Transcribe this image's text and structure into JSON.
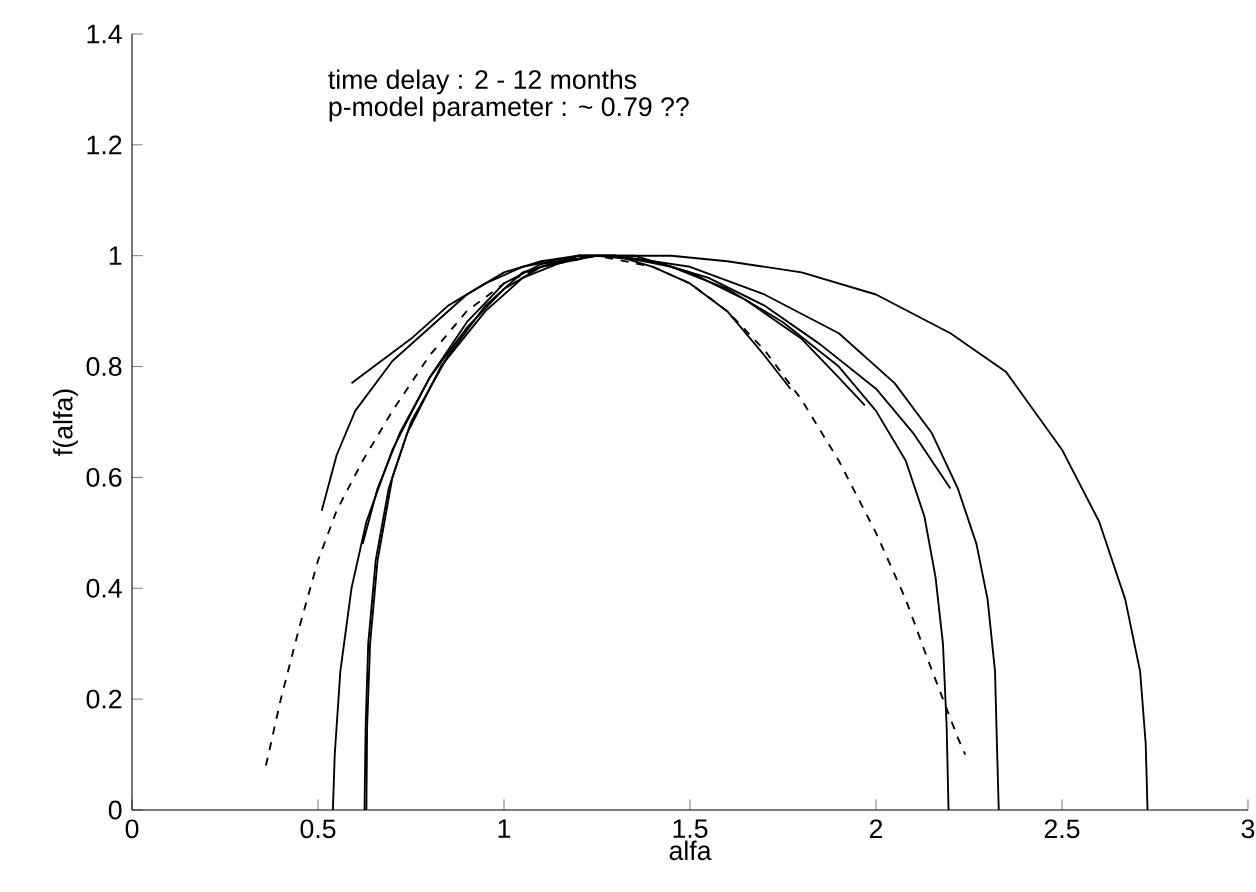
{
  "chart_data": {
    "type": "line",
    "xlabel": "alfa",
    "ylabel": "f(alfa)",
    "annotations": [
      "time delay : 2 - 12 months",
      "p-model parameter : ~ 0.79 ??"
    ],
    "xlim": [
      0,
      3
    ],
    "ylim": [
      0,
      1.4
    ],
    "xticks": [
      0,
      0.5,
      1,
      1.5,
      2,
      2.5,
      3
    ],
    "yticks": [
      0,
      0.2,
      0.4,
      0.6,
      0.8,
      1,
      1.2,
      1.4
    ],
    "grid": false,
    "marker": "none",
    "line_style": "solid",
    "series": [
      {
        "color": "#000000",
        "x": [
          0.54,
          0.545,
          0.56,
          0.59,
          0.63,
          0.7,
          0.8,
          0.9,
          1.0,
          1.1,
          1.25,
          1.45,
          1.6,
          1.8,
          2.0,
          2.2,
          2.35,
          2.5,
          2.6,
          2.67,
          2.71,
          2.725,
          2.73
        ],
        "values": [
          0,
          0.1,
          0.25,
          0.4,
          0.52,
          0.65,
          0.78,
          0.88,
          0.95,
          0.985,
          1.0,
          1.0,
          0.99,
          0.97,
          0.93,
          0.86,
          0.79,
          0.65,
          0.52,
          0.38,
          0.25,
          0.12,
          0
        ]
      },
      {
        "color": "#000000",
        "x": [
          0.63,
          0.632,
          0.64,
          0.66,
          0.7,
          0.75,
          0.85,
          0.95,
          1.05,
          1.2,
          1.3,
          1.5,
          1.7,
          1.9,
          2.05,
          2.15,
          2.22,
          2.27,
          2.3,
          2.32,
          2.325,
          2.33
        ],
        "values": [
          0,
          0.15,
          0.3,
          0.45,
          0.6,
          0.7,
          0.82,
          0.91,
          0.97,
          1.0,
          1.0,
          0.98,
          0.93,
          0.86,
          0.77,
          0.68,
          0.58,
          0.48,
          0.38,
          0.25,
          0.12,
          0
        ]
      },
      {
        "color": "#000000",
        "x": [
          0.625,
          0.628,
          0.635,
          0.655,
          0.69,
          0.74,
          0.83,
          0.95,
          1.05,
          1.2,
          1.3,
          1.45,
          1.6,
          1.75,
          1.9,
          2.0,
          2.08,
          2.13,
          2.16,
          2.18,
          2.19,
          2.195
        ],
        "values": [
          0,
          0.15,
          0.3,
          0.45,
          0.58,
          0.68,
          0.8,
          0.9,
          0.96,
          1.0,
          1.0,
          0.98,
          0.94,
          0.88,
          0.8,
          0.72,
          0.63,
          0.53,
          0.42,
          0.3,
          0.15,
          0
        ]
      },
      {
        "color": "#000000",
        "line_style": "dashed",
        "x": [
          0.36,
          0.4,
          0.45,
          0.5,
          0.55,
          0.62,
          0.7,
          0.8,
          0.9,
          1.0,
          1.1,
          1.25,
          1.4,
          1.5,
          1.6,
          1.7,
          1.8,
          1.9,
          2.0,
          2.08,
          2.14,
          2.18,
          2.22,
          2.24
        ],
        "values": [
          0.08,
          0.2,
          0.33,
          0.45,
          0.54,
          0.63,
          0.72,
          0.82,
          0.9,
          0.95,
          0.98,
          1.0,
          0.98,
          0.95,
          0.9,
          0.83,
          0.74,
          0.63,
          0.5,
          0.38,
          0.27,
          0.2,
          0.13,
          0.1
        ]
      },
      {
        "color": "#000000",
        "x": [
          0.51,
          0.55,
          0.6,
          0.7,
          0.8,
          0.9,
          1.0,
          1.1,
          1.2,
          1.3,
          1.4,
          1.5,
          1.6,
          1.7,
          1.77
        ],
        "values": [
          0.54,
          0.64,
          0.72,
          0.81,
          0.87,
          0.93,
          0.97,
          0.99,
          1.0,
          1.0,
          0.98,
          0.95,
          0.9,
          0.82,
          0.76
        ]
      },
      {
        "color": "#000000",
        "x": [
          0.59,
          0.65,
          0.75,
          0.85,
          0.95,
          1.05,
          1.2,
          1.35,
          1.5,
          1.65,
          1.8,
          1.9,
          1.97
        ],
        "values": [
          0.77,
          0.8,
          0.85,
          0.91,
          0.95,
          0.98,
          1.0,
          1.0,
          0.97,
          0.92,
          0.85,
          0.78,
          0.73
        ]
      },
      {
        "color": "#000000",
        "x": [
          0.62,
          0.66,
          0.72,
          0.8,
          0.9,
          1.0,
          1.1,
          1.25,
          1.4,
          1.55,
          1.7,
          1.85,
          2.0,
          2.1,
          2.2
        ],
        "values": [
          0.48,
          0.58,
          0.68,
          0.78,
          0.87,
          0.94,
          0.98,
          1.0,
          0.99,
          0.96,
          0.91,
          0.84,
          0.76,
          0.68,
          0.58
        ]
      }
    ]
  }
}
